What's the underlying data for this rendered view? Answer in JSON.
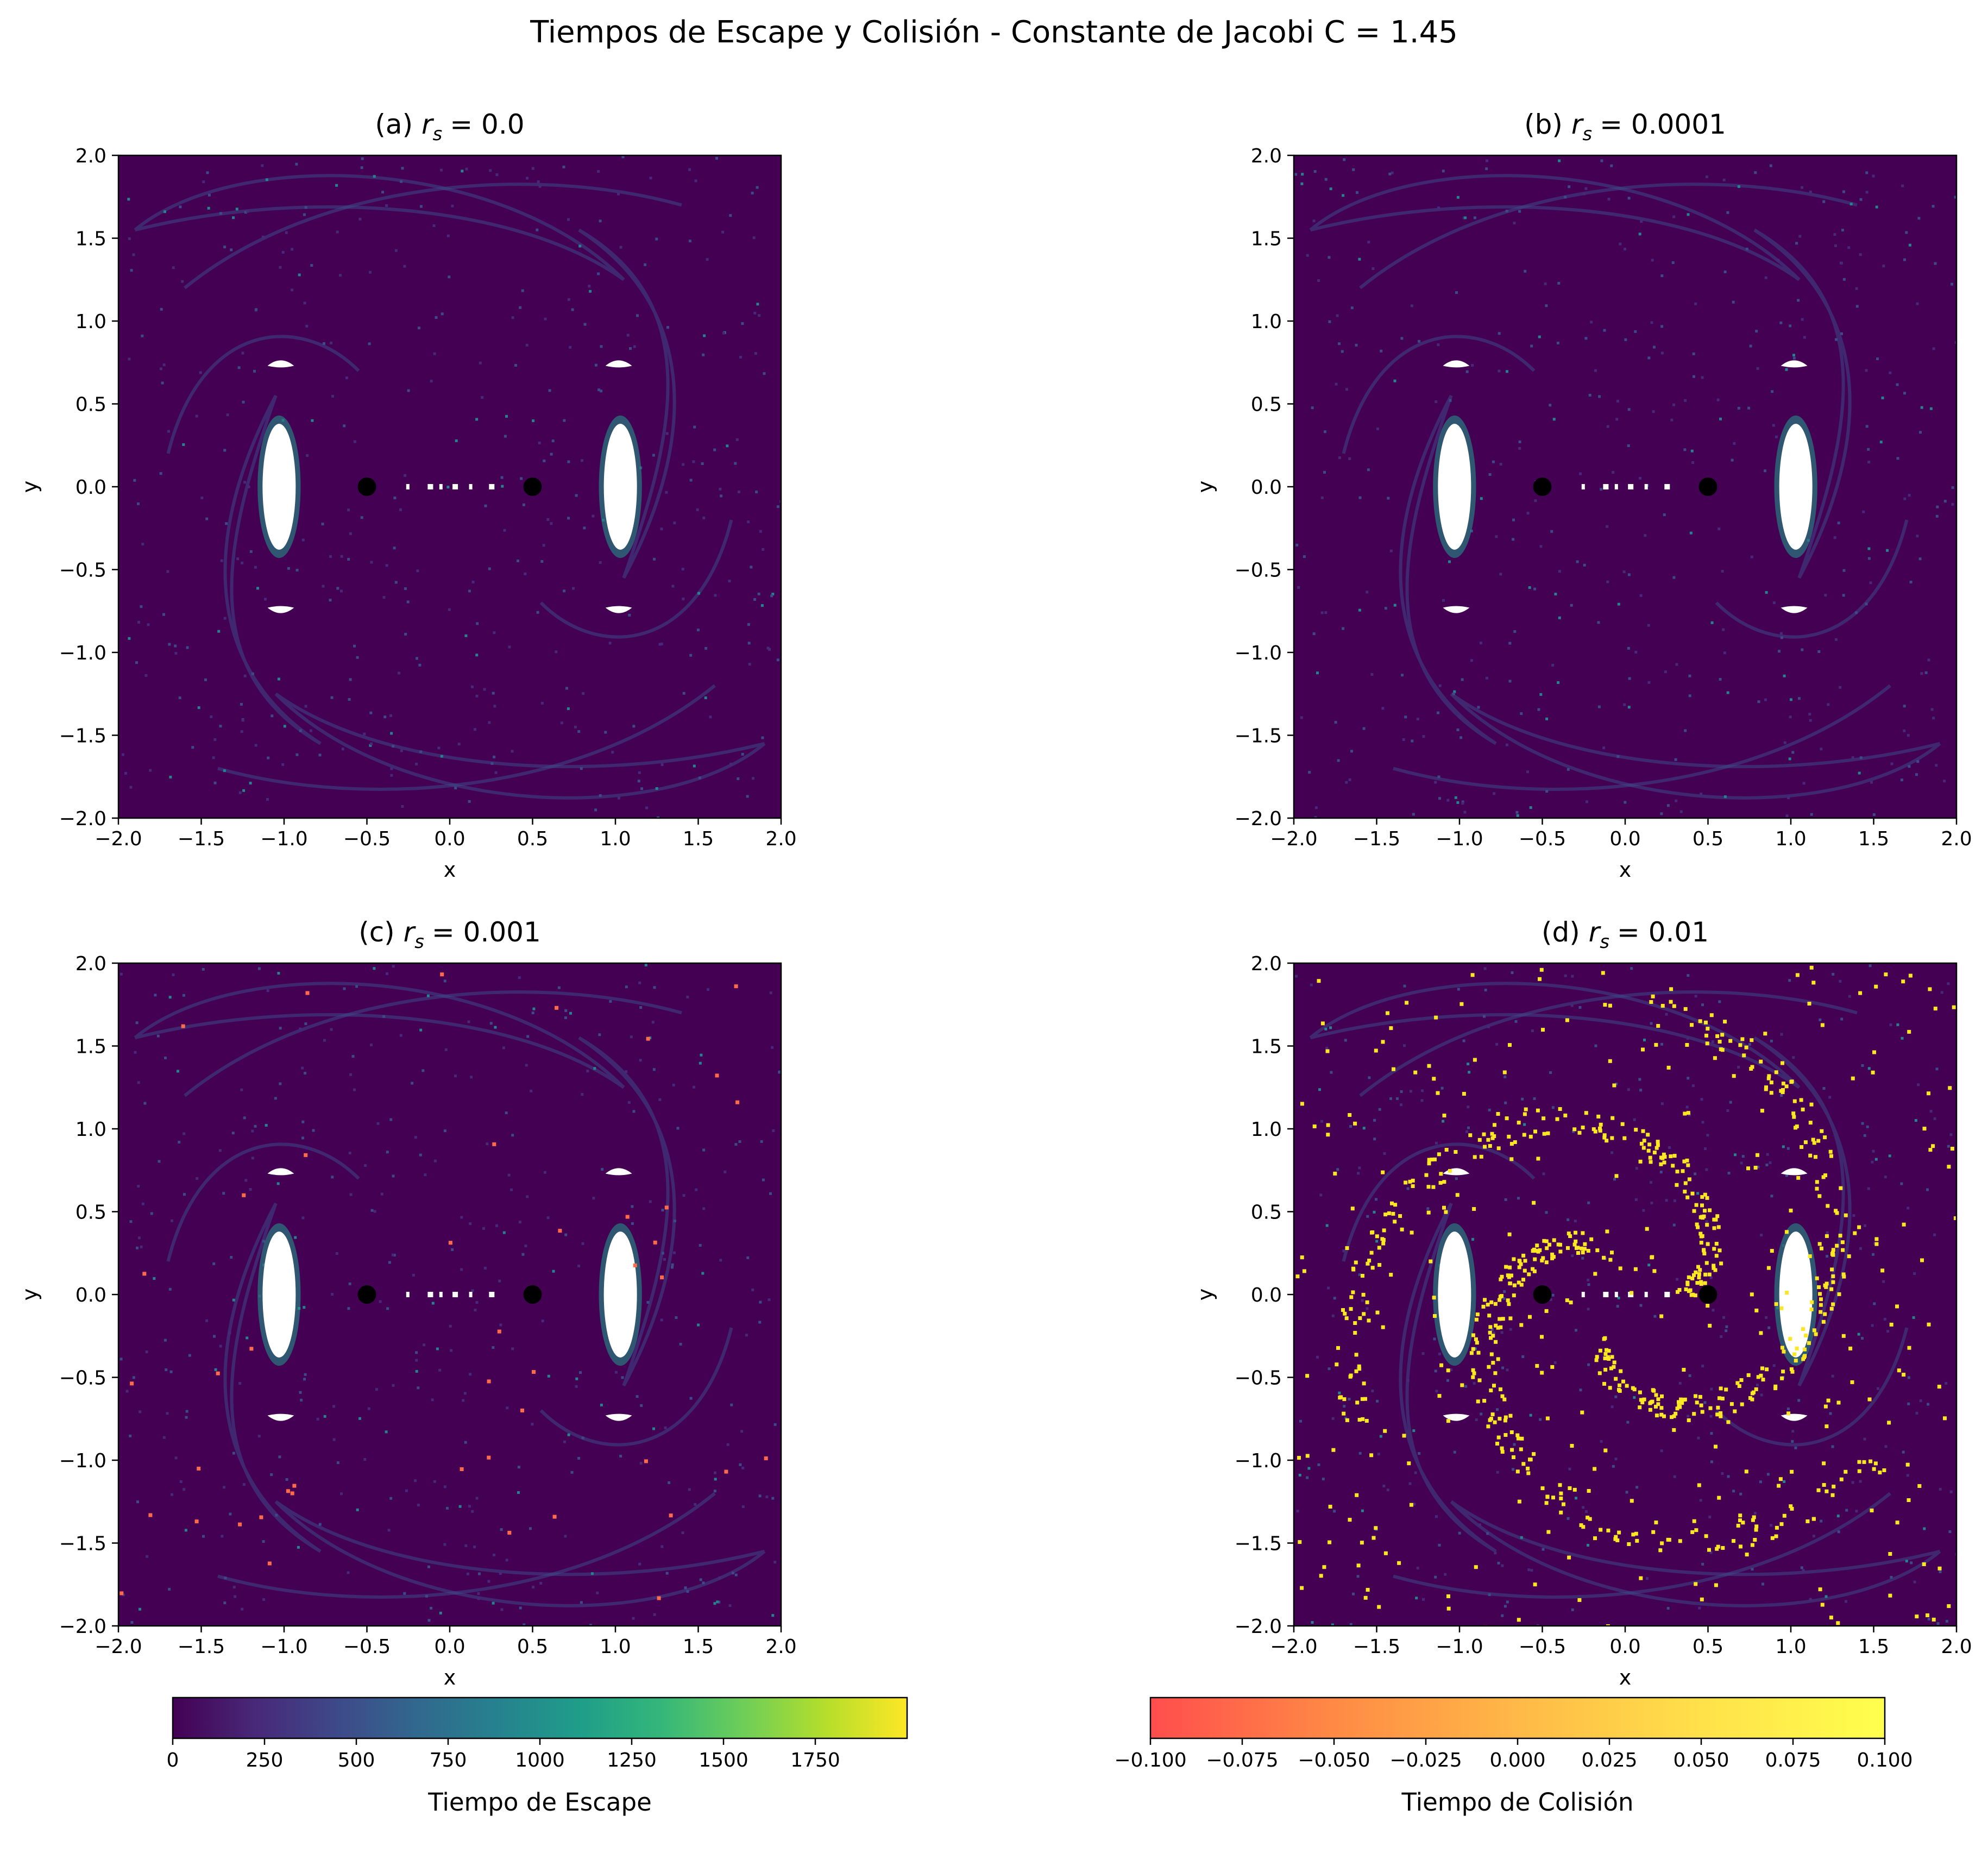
{
  "figure": {
    "title": "Tiempos de Escape y Colisión - Constante de Jacobi C = 1.45"
  },
  "colors": {
    "background": "#440154",
    "island": "#ffffff",
    "primary": "#000000",
    "collision": "#fde725",
    "escape_cmap": [
      "#440154",
      "#482878",
      "#3e4989",
      "#31688e",
      "#26828e",
      "#1f9e89",
      "#35b779",
      "#6ece58",
      "#b5de2b",
      "#fde725"
    ],
    "collision_cmap": [
      "#ff4d4d",
      "#ff8a45",
      "#ffb947",
      "#ffe14a",
      "#ffff4d"
    ]
  },
  "chart_data": [
    {
      "type": "heatmap",
      "panel": "a",
      "title_prefix": "(a) ",
      "title_symbol": "r",
      "title_sub": "s",
      "title_value": "= 0.0",
      "xlabel": "x",
      "ylabel": "y",
      "xlim": [
        -2.0,
        2.0
      ],
      "ylim": [
        -2.0,
        2.0
      ],
      "xticks": [
        "−2.0",
        "−1.5",
        "−1.0",
        "−0.5",
        "0.0",
        "0.5",
        "1.0",
        "1.5",
        "2.0"
      ],
      "yticks": [
        "−2.0",
        "−1.5",
        "−1.0",
        "−0.5",
        "0.0",
        "0.5",
        "1.0",
        "1.5",
        "2.0"
      ],
      "primaries": [
        {
          "x": -0.5,
          "y": 0.0
        },
        {
          "x": 0.5,
          "y": 0.0
        }
      ],
      "collision_density": 0
    },
    {
      "type": "heatmap",
      "panel": "b",
      "title_prefix": "(b) ",
      "title_symbol": "r",
      "title_sub": "s",
      "title_value": "= 0.0001",
      "xlabel": "x",
      "ylabel": "y",
      "xlim": [
        -2.0,
        2.0
      ],
      "ylim": [
        -2.0,
        2.0
      ],
      "xticks": [
        "−2.0",
        "−1.5",
        "−1.0",
        "−0.5",
        "0.0",
        "0.5",
        "1.0",
        "1.5",
        "2.0"
      ],
      "yticks": [
        "−2.0",
        "−1.5",
        "−1.0",
        "−0.5",
        "0.0",
        "0.5",
        "1.0",
        "1.5",
        "2.0"
      ],
      "primaries": [
        {
          "x": -0.5,
          "y": 0.0
        },
        {
          "x": 0.5,
          "y": 0.0
        }
      ],
      "collision_density": 0
    },
    {
      "type": "heatmap",
      "panel": "c",
      "title_prefix": "(c) ",
      "title_symbol": "r",
      "title_sub": "s",
      "title_value": "= 0.001",
      "xlabel": "x",
      "ylabel": "y",
      "xlim": [
        -2.0,
        2.0
      ],
      "ylim": [
        -2.0,
        2.0
      ],
      "xticks": [
        "−2.0",
        "−1.5",
        "−1.0",
        "−0.5",
        "0.0",
        "0.5",
        "1.0",
        "1.5",
        "2.0"
      ],
      "yticks": [
        "−2.0",
        "−1.5",
        "−1.0",
        "−0.5",
        "0.0",
        "0.5",
        "1.0",
        "1.5",
        "2.0"
      ],
      "primaries": [
        {
          "x": -0.5,
          "y": 0.0
        },
        {
          "x": 0.5,
          "y": 0.0
        }
      ],
      "collision_density": 0.05
    },
    {
      "type": "heatmap",
      "panel": "d",
      "title_prefix": "(d) ",
      "title_symbol": "r",
      "title_sub": "s",
      "title_value": "= 0.01",
      "xlabel": "x",
      "ylabel": "y",
      "xlim": [
        -2.0,
        2.0
      ],
      "ylim": [
        -2.0,
        2.0
      ],
      "xticks": [
        "−2.0",
        "−1.5",
        "−1.0",
        "−0.5",
        "0.0",
        "0.5",
        "1.0",
        "1.5",
        "2.0"
      ],
      "yticks": [
        "−2.0",
        "−1.5",
        "−1.0",
        "−0.5",
        "0.0",
        "0.5",
        "1.0",
        "1.5",
        "2.0"
      ],
      "primaries": [
        {
          "x": -0.5,
          "y": 0.0
        },
        {
          "x": 0.5,
          "y": 0.0
        }
      ],
      "collision_density": 1
    }
  ],
  "colorbars": {
    "escape": {
      "label": "Tiempo de Escape",
      "range": [
        0,
        2000
      ],
      "ticks": [
        {
          "value": 0,
          "label": "0"
        },
        {
          "value": 250,
          "label": "250"
        },
        {
          "value": 500,
          "label": "500"
        },
        {
          "value": 750,
          "label": "750"
        },
        {
          "value": 1000,
          "label": "1000"
        },
        {
          "value": 1250,
          "label": "1250"
        },
        {
          "value": 1500,
          "label": "1500"
        },
        {
          "value": 1750,
          "label": "1750"
        }
      ]
    },
    "collision": {
      "label": "Tiempo de Colisión",
      "range": [
        -0.1,
        0.1
      ],
      "ticks": [
        {
          "value": -0.1,
          "label": "−0.100"
        },
        {
          "value": -0.075,
          "label": "−0.075"
        },
        {
          "value": -0.05,
          "label": "−0.050"
        },
        {
          "value": -0.025,
          "label": "−0.025"
        },
        {
          "value": 0.0,
          "label": "0.000"
        },
        {
          "value": 0.025,
          "label": "0.025"
        },
        {
          "value": 0.05,
          "label": "0.050"
        },
        {
          "value": 0.075,
          "label": "0.075"
        },
        {
          "value": 0.1,
          "label": "0.100"
        }
      ]
    }
  }
}
